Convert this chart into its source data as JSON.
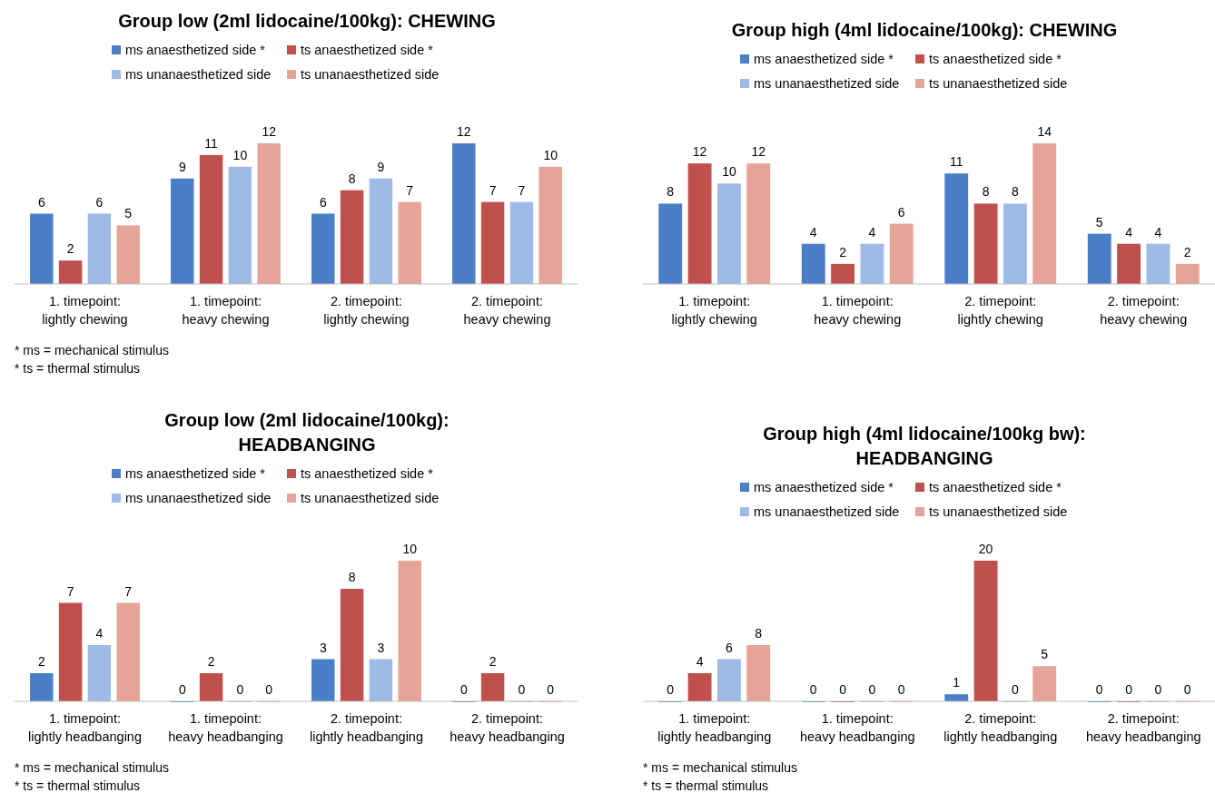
{
  "chart_data": [
    {
      "type": "bar",
      "title": "Group low (2ml lidocaine/100kg): CHEWING",
      "categories": [
        "1. timepoint:\nlightly chewing",
        "1. timepoint:\nheavy chewing",
        "2. timepoint:\nlightly chewing",
        "2. timepoint:\nheavy chewing"
      ],
      "series": [
        {
          "name": "ms anaesthetized side *",
          "color": "#4a7ec6",
          "values": [
            6,
            9,
            6,
            12
          ]
        },
        {
          "name": "ts anaesthetized side *",
          "color": "#c0504d",
          "values": [
            2,
            11,
            8,
            7
          ]
        },
        {
          "name": "ms unanaesthetized side",
          "color": "#9dbbe6",
          "values": [
            6,
            10,
            9,
            7
          ]
        },
        {
          "name": "ts unanaesthetized side",
          "color": "#e6a399",
          "values": [
            5,
            12,
            7,
            10
          ]
        }
      ],
      "data_labels": true,
      "legend": "top",
      "tick_labels": "x",
      "annotations": [
        "* ms = mechanical stimulus",
        "* ts = thermal stimulus"
      ]
    },
    {
      "type": "bar",
      "title": "Group high (4ml lidocaine/100kg): CHEWING",
      "categories": [
        "1. timepoint:\nlightly chewing",
        "1. timepoint:\nheavy chewing",
        "2. timepoint:\nlightly chewing",
        "2. timepoint:\nheavy chewing"
      ],
      "series": [
        {
          "name": "ms anaesthetized side *",
          "color": "#4a7ec6",
          "values": [
            8,
            4,
            11,
            5
          ]
        },
        {
          "name": "ts anaesthetized side *",
          "color": "#c0504d",
          "values": [
            12,
            2,
            8,
            4
          ]
        },
        {
          "name": "ms unanaesthetized side",
          "color": "#9dbbe6",
          "values": [
            10,
            4,
            8,
            4
          ]
        },
        {
          "name": "ts unanaesthetized side",
          "color": "#e6a399",
          "values": [
            12,
            6,
            14,
            2
          ]
        }
      ],
      "data_labels": true,
      "legend": "top",
      "tick_labels": "x"
    },
    {
      "type": "bar",
      "title": "Group low (2ml lidocaine/100kg):\nHEADBANGING",
      "categories": [
        "1. timepoint:\nlightly headbanging",
        "1. timepoint:\nheavy headbanging",
        "2. timepoint:\nlightly headbanging",
        "2. timepoint:\nheavy headbanging"
      ],
      "series": [
        {
          "name": "ms anaesthetized side *",
          "color": "#4a7ec6",
          "values": [
            2,
            0,
            3,
            0
          ]
        },
        {
          "name": "ts anaesthetized side *",
          "color": "#c0504d",
          "values": [
            7,
            2,
            8,
            2
          ]
        },
        {
          "name": "ms unanaesthetized side",
          "color": "#9dbbe6",
          "values": [
            4,
            0,
            3,
            0
          ]
        },
        {
          "name": "ts unanaesthetized side",
          "color": "#e6a399",
          "values": [
            7,
            0,
            10,
            0
          ]
        }
      ],
      "data_labels": true,
      "legend": "top",
      "tick_labels": "x",
      "annotations": [
        "* ms = mechanical stimulus",
        "* ts = thermal stimulus"
      ]
    },
    {
      "type": "bar",
      "title": "Group high (4ml lidocaine/100kg bw):\nHEADBANGING",
      "categories": [
        "1. timepoint:\nlightly headbanging",
        "1. timepoint:\nheavy headbanging",
        "2. timepoint:\nlightly headbanging",
        "2. timepoint:\nheavy headbanging"
      ],
      "series": [
        {
          "name": "ms anaesthetized side *",
          "color": "#4a7ec6",
          "values": [
            0,
            0,
            1,
            0
          ]
        },
        {
          "name": "ts anaesthetized side *",
          "color": "#c0504d",
          "values": [
            4,
            0,
            20,
            0
          ]
        },
        {
          "name": "ms unanaesthetized side",
          "color": "#9dbbe6",
          "values": [
            6,
            0,
            0,
            0
          ]
        },
        {
          "name": "ts unanaesthetized side",
          "color": "#e6a399",
          "values": [
            8,
            0,
            5,
            0
          ]
        }
      ],
      "data_labels": true,
      "legend": "top",
      "tick_labels": "x",
      "annotations": [
        "* ms = mechanical stimulus",
        "* ts = thermal stimulus"
      ]
    }
  ]
}
